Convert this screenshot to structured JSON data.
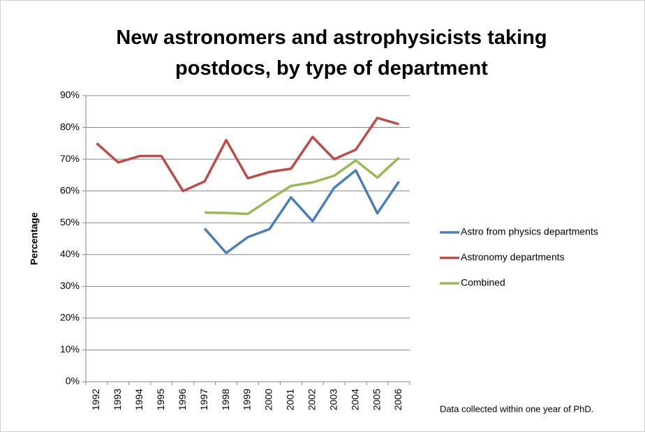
{
  "chart_data": {
    "type": "line",
    "title": "New astronomers and astrophysicists taking postdocs, by type of department",
    "y_label": "Percentage",
    "annotation": "Data collected within one year of PhD.",
    "categories": [
      "1992",
      "1993",
      "1994",
      "1995",
      "1996",
      "1997",
      "1998",
      "1999",
      "2000",
      "2001",
      "2002",
      "2003",
      "2004",
      "2005",
      "2006"
    ],
    "series": [
      {
        "name": "Astro from physics departments",
        "color": "#4a7ebb",
        "values": [
          null,
          null,
          null,
          null,
          null,
          48.2,
          40.5,
          45.5,
          48,
          58,
          50.5,
          61,
          66.5,
          53,
          63
        ]
      },
      {
        "name": "Astronomy departments",
        "color": "#be4b48",
        "values": [
          75,
          69,
          71,
          71,
          60,
          63,
          76,
          64,
          66,
          67,
          77,
          70,
          73,
          83,
          81
        ]
      },
      {
        "name": "Combined",
        "color": "#98b954",
        "values": [
          null,
          null,
          null,
          null,
          null,
          53.2,
          53.1,
          52.8,
          57.3,
          61.6,
          62.7,
          64.8,
          69.6,
          64.2,
          70.5
        ]
      }
    ],
    "ylim": [
      0,
      90
    ],
    "yticks": [
      {
        "value": 0,
        "label": "0%"
      },
      {
        "value": 10,
        "label": "10%"
      },
      {
        "value": 20,
        "label": "20%"
      },
      {
        "value": 30,
        "label": "30%"
      },
      {
        "value": 40,
        "label": "40%"
      },
      {
        "value": 50,
        "label": "50%"
      },
      {
        "value": 60,
        "label": "60%"
      },
      {
        "value": 70,
        "label": "70%"
      },
      {
        "value": 80,
        "label": "80%"
      },
      {
        "value": 90,
        "label": "90%"
      }
    ],
    "grid": true,
    "legend": "right"
  }
}
